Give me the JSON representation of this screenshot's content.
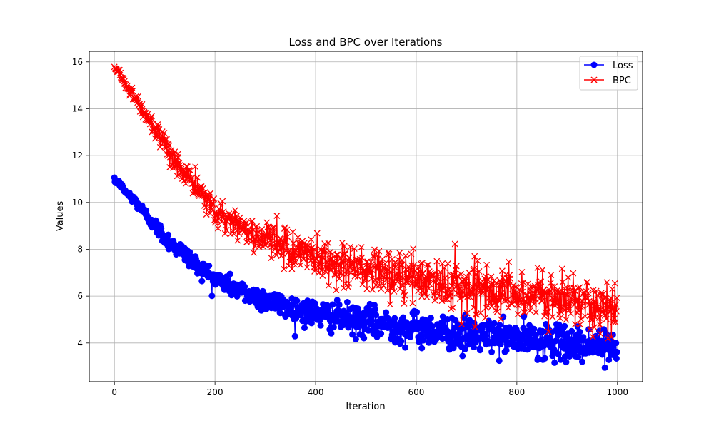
{
  "chart_data": {
    "type": "line",
    "title": "Loss and BPC over Iterations",
    "xlabel": "Iteration",
    "ylabel": "Values",
    "xlim": [
      -50,
      1050
    ],
    "ylim": [
      2.35,
      16.45
    ],
    "x_ticks": [
      0,
      200,
      400,
      600,
      800,
      1000
    ],
    "y_ticks": [
      4,
      6,
      8,
      10,
      12,
      14,
      16
    ],
    "grid": true,
    "legend_position": "top-right",
    "x_range": [
      0,
      999
    ],
    "series": [
      {
        "name": "Loss",
        "color": "#0000ff",
        "marker": "circle",
        "anchors": [
          [
            0,
            10.92
          ],
          [
            10,
            10.82
          ],
          [
            20,
            10.5
          ],
          [
            40,
            10.1
          ],
          [
            60,
            9.55
          ],
          [
            80,
            9.05
          ],
          [
            100,
            8.5
          ],
          [
            120,
            8.15
          ],
          [
            140,
            7.8
          ],
          [
            160,
            7.4
          ],
          [
            180,
            7.05
          ],
          [
            200,
            6.75
          ],
          [
            230,
            6.45
          ],
          [
            260,
            6.15
          ],
          [
            300,
            5.85
          ],
          [
            350,
            5.5
          ],
          [
            400,
            5.25
          ],
          [
            450,
            5.05
          ],
          [
            500,
            4.9
          ],
          [
            550,
            4.75
          ],
          [
            600,
            4.62
          ],
          [
            650,
            4.5
          ],
          [
            700,
            4.38
          ],
          [
            750,
            4.28
          ],
          [
            800,
            4.18
          ],
          [
            850,
            4.08
          ],
          [
            900,
            4.0
          ],
          [
            950,
            3.92
          ],
          [
            999,
            3.85
          ]
        ],
        "noise": [
          [
            0,
            0.05
          ],
          [
            100,
            0.18
          ],
          [
            250,
            0.22
          ],
          [
            400,
            0.3
          ],
          [
            600,
            0.35
          ],
          [
            999,
            0.35
          ]
        ],
        "outliers": [
          [
            692,
            3.45
          ],
          [
            858,
            4.8
          ],
          [
            895,
            4.72
          ],
          [
            930,
            3.2
          ],
          [
            975,
            2.95
          ],
          [
            995,
            3.45
          ]
        ]
      },
      {
        "name": "BPC",
        "color": "#ff0000",
        "marker": "x",
        "anchors": [
          [
            0,
            15.75
          ],
          [
            10,
            15.55
          ],
          [
            20,
            15.1
          ],
          [
            40,
            14.5
          ],
          [
            60,
            13.8
          ],
          [
            80,
            13.05
          ],
          [
            100,
            12.35
          ],
          [
            120,
            11.8
          ],
          [
            140,
            11.25
          ],
          [
            160,
            10.7
          ],
          [
            180,
            10.15
          ],
          [
            200,
            9.7
          ],
          [
            230,
            9.2
          ],
          [
            260,
            8.85
          ],
          [
            300,
            8.45
          ],
          [
            350,
            8.0
          ],
          [
            400,
            7.65
          ],
          [
            450,
            7.35
          ],
          [
            500,
            7.1
          ],
          [
            550,
            6.9
          ],
          [
            600,
            6.72
          ],
          [
            650,
            6.55
          ],
          [
            700,
            6.4
          ],
          [
            750,
            6.25
          ],
          [
            800,
            6.1
          ],
          [
            850,
            5.95
          ],
          [
            900,
            5.82
          ],
          [
            950,
            5.7
          ],
          [
            999,
            5.55
          ]
        ],
        "noise": [
          [
            0,
            0.06
          ],
          [
            100,
            0.25
          ],
          [
            250,
            0.32
          ],
          [
            400,
            0.45
          ],
          [
            600,
            0.5
          ],
          [
            999,
            0.5
          ]
        ],
        "outliers": [
          [
            590,
            7.8
          ],
          [
            690,
            4.8
          ],
          [
            705,
            7.0
          ],
          [
            868,
            6.9
          ],
          [
            902,
            6.8
          ],
          [
            940,
            6.6
          ],
          [
            966,
            4.4
          ],
          [
            990,
            6.3
          ]
        ]
      }
    ]
  }
}
